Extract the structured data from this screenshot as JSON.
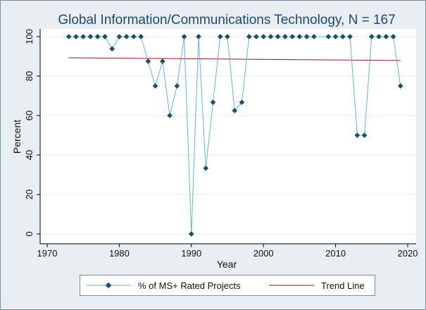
{
  "chart_data": {
    "type": "line",
    "title": "Global Information/Communications Technology, N = 167",
    "xlabel": "Year",
    "ylabel": "Percent",
    "xlim": [
      1970,
      2020
    ],
    "ylim": [
      0,
      100
    ],
    "xticks": [
      1970,
      1980,
      1990,
      2000,
      2010,
      2020
    ],
    "yticks": [
      0,
      20,
      40,
      60,
      80,
      100
    ],
    "grid": true,
    "legend_position": "bottom",
    "series": [
      {
        "name": "% of MS+ Rated Projects",
        "color": "#5fb6d3",
        "marker_color": "#1f4e63",
        "x": [
          1973,
          1974,
          1975,
          1976,
          1977,
          1978,
          1979,
          1980,
          1981,
          1982,
          1983,
          1984,
          1985,
          1986,
          1987,
          1988,
          1989,
          1990,
          1991,
          1992,
          1993,
          1994,
          1995,
          1996,
          1997,
          1998,
          1999,
          2000,
          2001,
          2002,
          2003,
          2004,
          2005,
          2006,
          2007,
          2009,
          2010,
          2011,
          2012,
          2013,
          2014,
          2015,
          2016,
          2017,
          2018,
          2019
        ],
        "y": [
          100,
          100,
          100,
          100,
          100,
          100,
          93.8,
          100,
          100,
          100,
          100,
          87.5,
          75,
          87.5,
          60,
          75,
          100,
          0,
          100,
          33.3,
          66.7,
          100,
          100,
          62.5,
          66.7,
          100,
          100,
          100,
          100,
          100,
          100,
          100,
          100,
          100,
          100,
          100,
          100,
          100,
          100,
          50,
          50,
          100,
          100,
          100,
          100,
          75
        ]
      },
      {
        "name": "Trend Line",
        "color": "#8b1a1a",
        "x": [
          1973,
          2019
        ],
        "y": [
          89.3,
          87.9
        ]
      }
    ]
  }
}
